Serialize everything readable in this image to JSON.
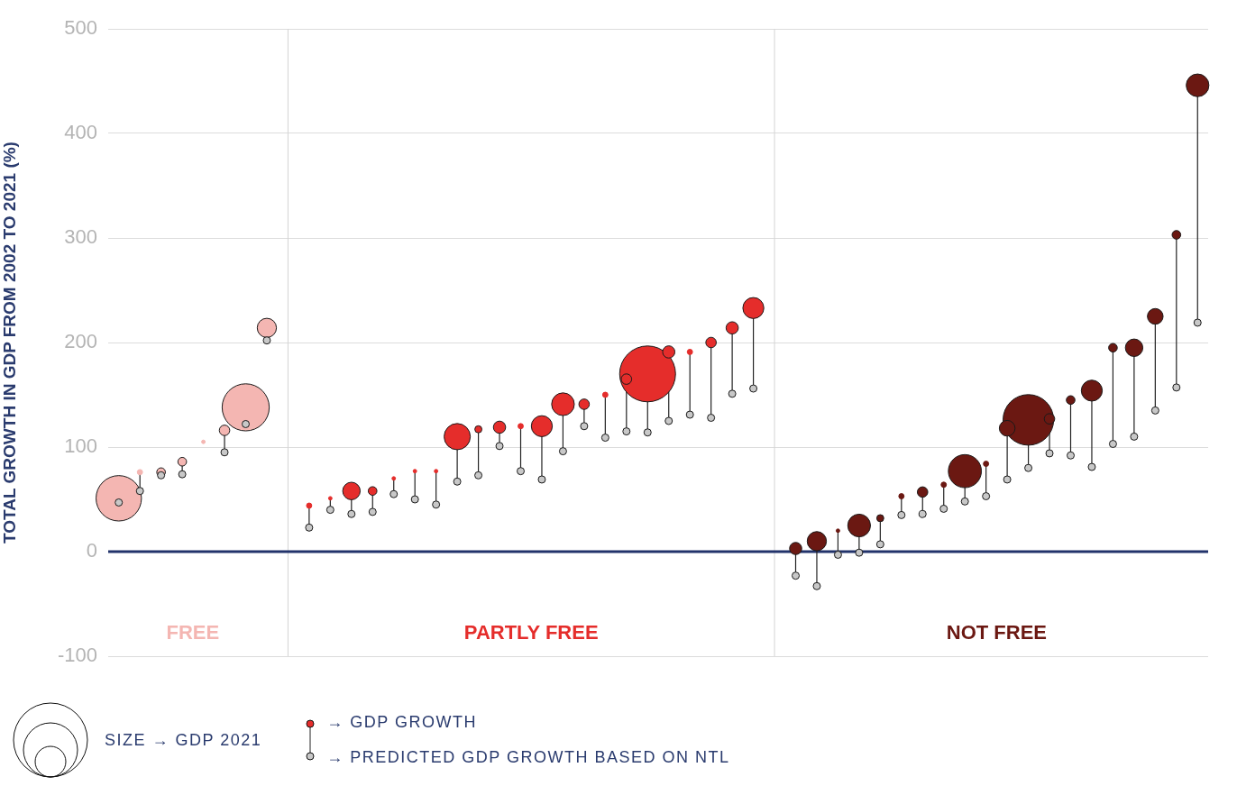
{
  "chart_data": {
    "type": "bubble",
    "ylabel": "TOTAL GROWTH IN GDP FROM 2002 TO 2021 (%)",
    "categories": [
      null,
      null,
      null,
      null,
      null,
      null,
      null,
      null,
      null,
      null,
      null,
      null,
      null,
      null,
      null,
      null,
      null,
      null,
      null,
      null,
      null,
      null,
      null,
      null,
      null,
      null,
      null,
      null,
      null,
      null,
      null,
      null,
      null,
      null,
      null,
      null,
      null,
      null,
      null,
      null,
      null,
      null,
      null,
      null,
      null,
      null,
      null,
      null,
      null,
      null,
      null,
      null
    ],
    "ylim": [
      -100,
      500
    ],
    "yticks": [
      -100,
      0,
      100,
      200,
      300,
      400,
      500
    ],
    "tick_labels": "y",
    "grid": "y",
    "marker": "circle",
    "series": [
      {
        "name": "FREE",
        "color": "#f4b6b2",
        "values": [
          51,
          76,
          76,
          86,
          105,
          116,
          138,
          214,
          null,
          null,
          null,
          null,
          null,
          null,
          null,
          null,
          null,
          null,
          null,
          null,
          null,
          null,
          null,
          null,
          null,
          null,
          null,
          null,
          null,
          null,
          null,
          null,
          null,
          null,
          null,
          null,
          null,
          null,
          null,
          null,
          null,
          null,
          null,
          null,
          null,
          null,
          null,
          null,
          null,
          null,
          null,
          null
        ],
        "sizes": [
          0.66,
          0.009,
          0.024,
          0.024,
          0.004,
          0.035,
          0.71,
          0.118,
          null,
          null,
          null,
          null,
          null,
          null,
          null,
          null,
          null,
          null,
          null,
          null,
          null,
          null,
          null,
          null,
          null,
          null,
          null,
          null,
          null,
          null,
          null,
          null,
          null,
          null,
          null,
          null,
          null,
          null,
          null,
          null,
          null,
          null,
          null,
          null,
          null,
          null,
          null,
          null,
          null,
          null,
          null,
          null
        ]
      },
      {
        "name": "PARTLY FREE",
        "color": "#e52d2b",
        "values": [
          null,
          null,
          null,
          null,
          null,
          null,
          null,
          null,
          null,
          44,
          51,
          58,
          58,
          70,
          77,
          77,
          110,
          117,
          119,
          120,
          120,
          141,
          141,
          150,
          165,
          170,
          191,
          191,
          200,
          214,
          233,
          null,
          null,
          null,
          null,
          null,
          null,
          null,
          null,
          null,
          null,
          null,
          null,
          null,
          null,
          null,
          null,
          null,
          null,
          null,
          null,
          null
        ],
        "sizes": [
          null,
          null,
          null,
          null,
          null,
          null,
          null,
          null,
          null,
          0.009,
          0.004,
          0.098,
          0.024,
          0.004,
          0.004,
          0.004,
          0.22,
          0.016,
          0.048,
          0.009,
          0.141,
          0.165,
          0.035,
          0.009,
          0.035,
          1,
          0.048,
          0.009,
          0.035,
          0.048,
          0.141,
          null,
          null,
          null,
          null,
          null,
          null,
          null,
          null,
          null,
          null,
          null,
          null,
          null,
          null,
          null,
          null,
          null,
          null,
          null,
          null,
          null
        ]
      },
      {
        "name": "NOT FREE",
        "color": "#6b1812",
        "values": [
          null,
          null,
          null,
          null,
          null,
          null,
          null,
          null,
          null,
          null,
          null,
          null,
          null,
          null,
          null,
          null,
          null,
          null,
          null,
          null,
          null,
          null,
          null,
          null,
          null,
          null,
          null,
          null,
          null,
          null,
          null,
          null,
          3,
          10,
          20,
          25,
          32,
          53,
          57,
          64,
          77,
          84,
          118,
          126,
          127,
          145,
          154,
          195,
          195,
          225,
          303,
          446
        ],
        "sizes": [
          null,
          null,
          null,
          null,
          null,
          null,
          null,
          null,
          null,
          null,
          null,
          null,
          null,
          null,
          null,
          null,
          null,
          null,
          null,
          null,
          null,
          null,
          null,
          null,
          null,
          null,
          null,
          null,
          null,
          null,
          null,
          null,
          0.048,
          0.118,
          0.004,
          0.165,
          0.016,
          0.009,
          0.035,
          0.009,
          0.35,
          0.009,
          0.079,
          0.82,
          0.035,
          0.024,
          0.141,
          0.024,
          0.098,
          0.079,
          0.024,
          0.165
        ]
      },
      {
        "type": "scatter",
        "color": "#c8c8c8",
        "values": [
          47,
          58,
          73,
          74,
          null,
          95,
          122,
          202,
          null,
          23,
          40,
          36,
          38,
          55,
          50,
          45,
          67,
          73,
          101,
          77,
          69,
          96,
          120,
          109,
          115,
          114,
          125,
          131,
          128,
          151,
          156,
          null,
          -23,
          -33,
          -3,
          -1,
          7,
          35,
          36,
          41,
          48,
          53,
          69,
          80,
          94,
          92,
          81,
          103,
          110,
          135,
          157,
          219
        ]
      }
    ],
    "ref_lines": [
      {
        "axis": "y",
        "value": 0,
        "color": "#22336b"
      }
    ],
    "annotations": [
      "SIZE → GDP 2021",
      "→ GDP GROWTH",
      "→ PREDICTED GDP GROWTH BASED ON NTL"
    ]
  }
}
